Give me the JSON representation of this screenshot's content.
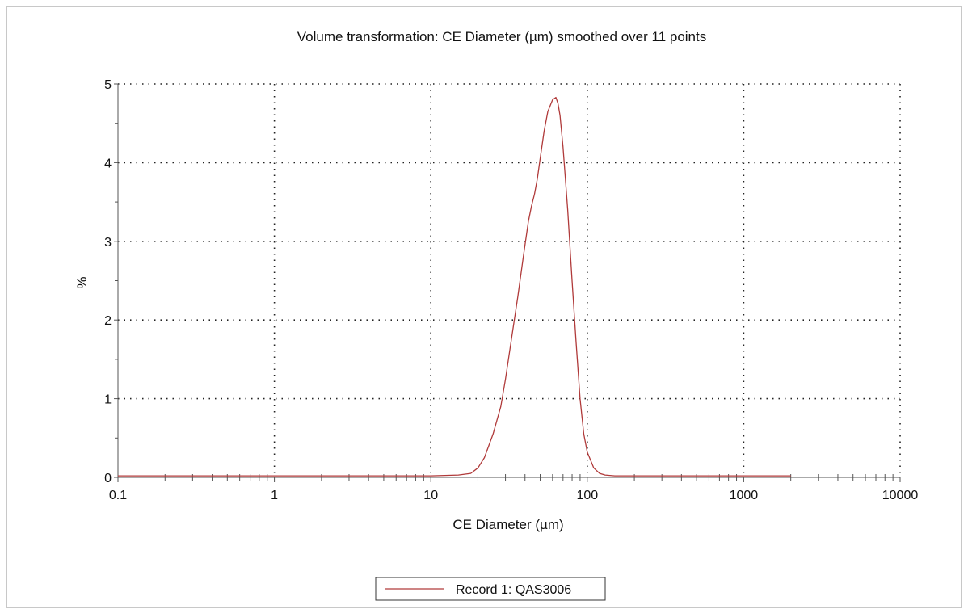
{
  "chart_data": {
    "type": "line",
    "title": "Volume transformation: CE Diameter (µm) smoothed over 11 points",
    "xlabel": "CE Diameter (µm)",
    "ylabel": "%",
    "xscale": "log",
    "xlim": [
      0.1,
      10000
    ],
    "ylim": [
      0,
      5
    ],
    "x_tick_labels": [
      "0.1",
      "1",
      "10",
      "100",
      "1000",
      "10000"
    ],
    "x_tick_values": [
      0.1,
      1,
      10,
      100,
      1000,
      10000
    ],
    "y_tick_labels": [
      "0",
      "1",
      "2",
      "3",
      "4",
      "5"
    ],
    "y_tick_values": [
      0,
      1,
      2,
      3,
      4,
      5
    ],
    "grid": true,
    "legend_position": "bottom-center",
    "series": [
      {
        "name": "Record 1: QAS3006",
        "color": "#b03a3a",
        "x": [
          0.1,
          1,
          10,
          15,
          18,
          20,
          22,
          25,
          28,
          30,
          33,
          36,
          39,
          42,
          44,
          46,
          48,
          50,
          53,
          56,
          60,
          63,
          65,
          67,
          70,
          75,
          80,
          85,
          90,
          95,
          100,
          110,
          120,
          130,
          150,
          200,
          500,
          2000
        ],
        "y": [
          0.02,
          0.02,
          0.02,
          0.03,
          0.05,
          0.12,
          0.25,
          0.55,
          0.9,
          1.25,
          1.8,
          2.3,
          2.8,
          3.25,
          3.45,
          3.6,
          3.8,
          4.05,
          4.4,
          4.65,
          4.8,
          4.83,
          4.75,
          4.6,
          4.2,
          3.4,
          2.5,
          1.7,
          1.0,
          0.55,
          0.32,
          0.12,
          0.05,
          0.03,
          0.02,
          0.02,
          0.02,
          0.02
        ]
      }
    ]
  }
}
